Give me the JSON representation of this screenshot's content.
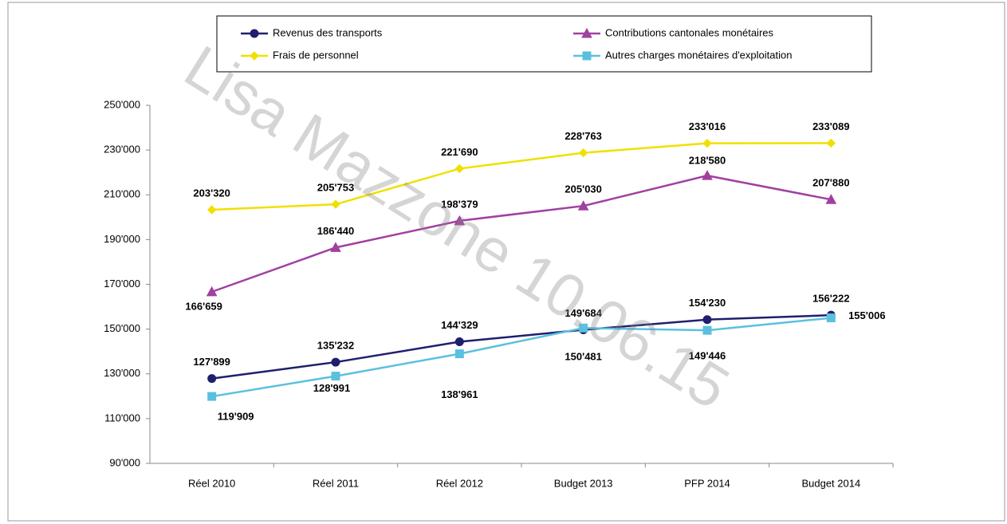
{
  "chart_data": {
    "type": "line",
    "watermark": "Lisa Mazzone 10.06.15",
    "categories": [
      "Réel 2010",
      "Réel 2011",
      "Réel 2012",
      "Budget 2013",
      "PFP 2014",
      "Budget 2014"
    ],
    "series": [
      {
        "name": "Revenus des transports",
        "color": "#1f1f6e",
        "marker": "circle",
        "values": [
          127899,
          135232,
          144329,
          149684,
          154230,
          156222
        ],
        "value_labels": [
          "127'899",
          "135'232",
          "144'329",
          "149'684",
          "154'230",
          "156'222"
        ]
      },
      {
        "name": "Contributions cantonales monétaires",
        "color": "#a040a0",
        "marker": "triangle",
        "values": [
          166659,
          186440,
          198379,
          205030,
          218580,
          207880
        ],
        "value_labels": [
          "166'659",
          "186'440",
          "198'379",
          "205'030",
          "218'580",
          "207'880"
        ]
      },
      {
        "name": "Frais de personnel",
        "color": "#f0e000",
        "marker": "diamond",
        "values": [
          203320,
          205753,
          221690,
          228763,
          233016,
          233089
        ],
        "value_labels": [
          "203'320",
          "205'753",
          "221'690",
          "228'763",
          "233'016",
          "233'089"
        ]
      },
      {
        "name": "Autres charges monétaires d'exploitation",
        "color": "#5bc0de",
        "marker": "square",
        "values": [
          119909,
          128991,
          138961,
          150481,
          149446,
          155006
        ],
        "value_labels": [
          "119'909",
          "128'991",
          "138'961",
          "150'481",
          "149'446",
          "155'006"
        ]
      }
    ],
    "ylim": [
      90000,
      250000
    ],
    "yticks": [
      {
        "value": 90000,
        "label": "90'000"
      },
      {
        "value": 110000,
        "label": "110'000"
      },
      {
        "value": 130000,
        "label": "130'000"
      },
      {
        "value": 150000,
        "label": "150'000"
      },
      {
        "value": 170000,
        "label": "170'000"
      },
      {
        "value": 190000,
        "label": "190'000"
      },
      {
        "value": 210000,
        "label": "210'000"
      },
      {
        "value": 230000,
        "label": "230'000"
      },
      {
        "value": 250000,
        "label": "250'000"
      }
    ],
    "legend": "top"
  }
}
